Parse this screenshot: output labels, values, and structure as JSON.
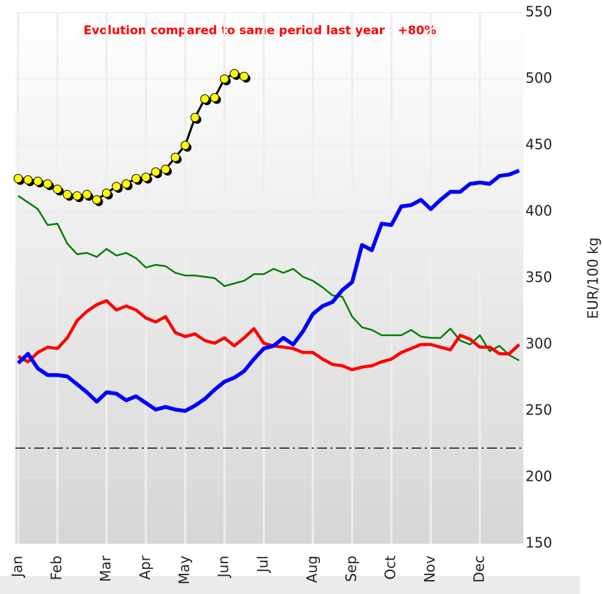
{
  "chart_data": {
    "type": "line",
    "title": "Evolution compared to same period last year : +80%",
    "y_label": "EUR/100 kg",
    "categories": [
      "Jan",
      null,
      null,
      null,
      "Feb",
      null,
      null,
      null,
      null,
      "Mar",
      null,
      null,
      null,
      "Apr",
      null,
      null,
      null,
      "May",
      null,
      null,
      null,
      "Jun",
      null,
      null,
      null,
      "Jul",
      null,
      null,
      null,
      null,
      "Aug",
      null,
      null,
      null,
      "Sep",
      null,
      null,
      null,
      "Oct",
      null,
      null,
      null,
      "Nov",
      null,
      null,
      null,
      null,
      "Dec",
      null,
      null,
      null,
      null
    ],
    "ylim": [
      150,
      550
    ],
    "yticks": [
      150,
      200,
      250,
      300,
      350,
      400,
      450,
      500,
      550
    ],
    "grid": true,
    "reference_line": 222,
    "series": [
      {
        "color": "#008000",
        "values": [
          412,
          407,
          402,
          390,
          391,
          376,
          368,
          369,
          366,
          372,
          367,
          369,
          365,
          358,
          360,
          359,
          354,
          352,
          352,
          351,
          350,
          344,
          346,
          348,
          353,
          353,
          357,
          354,
          357,
          351,
          348,
          343,
          337,
          336,
          321,
          313,
          311,
          307,
          307,
          307,
          311,
          306,
          305,
          305,
          312,
          303,
          300,
          307,
          295,
          299,
          292,
          288
        ]
      },
      {
        "color": "#ff0000",
        "values": [
          291,
          287,
          294,
          298,
          297,
          305,
          318,
          325,
          330,
          333,
          326,
          329,
          326,
          320,
          317,
          321,
          309,
          306,
          308,
          303,
          301,
          305,
          299,
          305,
          312,
          301,
          299,
          298,
          297,
          294,
          294,
          289,
          285,
          284,
          281,
          283,
          284,
          287,
          289,
          294,
          297,
          300,
          300,
          298,
          296,
          307,
          304,
          298,
          298,
          293,
          293,
          300
        ]
      },
      {
        "color": "#0000ff",
        "values": [
          286,
          293,
          282,
          277,
          277,
          276,
          270,
          264,
          257,
          264,
          263,
          258,
          261,
          256,
          251,
          253,
          251,
          250,
          254,
          259,
          266,
          272,
          275,
          280,
          289,
          297,
          299,
          305,
          300,
          310,
          323,
          329,
          332,
          341,
          347,
          375,
          371,
          391,
          390,
          404,
          405,
          409,
          402,
          409,
          415,
          415,
          421,
          422,
          421,
          427,
          428,
          431
        ]
      },
      {
        "color": "#000000",
        "marker_color": "#ffff00",
        "values": [
          425,
          424,
          423,
          421,
          417,
          413,
          412,
          413,
          409,
          414,
          419,
          421,
          425,
          426,
          430,
          432,
          441,
          450,
          471,
          485,
          486,
          500,
          504,
          502,
          null,
          null,
          null,
          null,
          null,
          null,
          null,
          null,
          null,
          null,
          null,
          null,
          null,
          null,
          null,
          null,
          null,
          null,
          null,
          null,
          null,
          null,
          null,
          null,
          null,
          null,
          null,
          null
        ]
      }
    ]
  }
}
